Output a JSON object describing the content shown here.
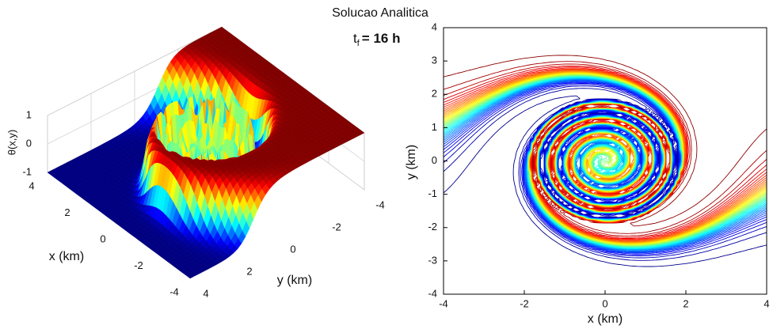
{
  "title": "Solucao Analitica",
  "annotation": {
    "symbol": "t",
    "subscript": "f",
    "text": "= 16 h"
  },
  "chart_data": [
    {
      "type": "surface",
      "xlabel": "x (km)",
      "ylabel": "y (km)",
      "zlabel": "θ(x,y)",
      "xlim": [
        -4,
        4
      ],
      "xticks": [
        -4,
        -2,
        0,
        2,
        4
      ],
      "ylim": [
        -4,
        4
      ],
      "yticks": [
        -4,
        -2,
        0,
        2,
        4
      ],
      "zlim": [
        -1,
        1
      ],
      "zticks": [
        -1,
        0,
        1
      ],
      "grid": true
    },
    {
      "type": "contour",
      "xlabel": "x (km)",
      "ylabel": "y (km)",
      "xlim": [
        -4,
        4
      ],
      "xticks": [
        -4,
        -2,
        0,
        2,
        4
      ],
      "ylim": [
        -4,
        4
      ],
      "yticks": [
        -4,
        -3,
        -2,
        -1,
        0,
        1,
        2,
        3,
        4
      ]
    }
  ]
}
